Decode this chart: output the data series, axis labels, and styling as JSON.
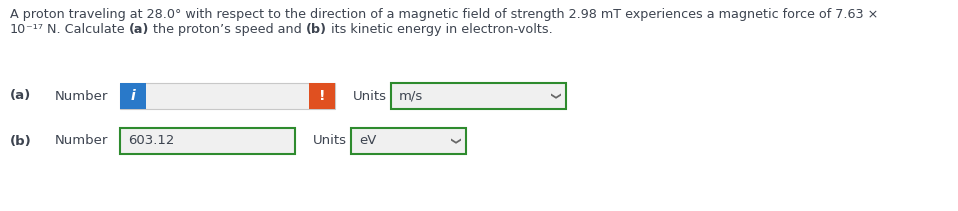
{
  "line1": "A proton traveling at 28.0° with respect to the direction of a magnetic field of strength 2.98 mT experiences a magnetic force of 7.63 ×",
  "line2_segments": [
    [
      "10",
      false
    ],
    [
      "⁻¹⁷ N. Calculate ",
      false
    ],
    [
      "(a)",
      true
    ],
    [
      " the proton’s speed and ",
      false
    ],
    [
      "(b)",
      true
    ],
    [
      " its kinetic energy in electron-volts.",
      false
    ]
  ],
  "row_a_label": "(a)",
  "row_a_number": "Number",
  "row_a_units_label": "Units",
  "row_a_units_value": "m/s",
  "row_b_label": "(b)",
  "row_b_number": "Number",
  "row_b_value": "603.12",
  "row_b_units_label": "Units",
  "row_b_units_value": "eV",
  "bg_color": "#ffffff",
  "text_color": "#3d4450",
  "box_border_color": "#2e8b2e",
  "input_bg": "#f0f0f0",
  "input_border": "#c8c8c8",
  "white": "#ffffff",
  "blue_btn_color": "#2979c9",
  "orange_btn_color": "#e05020",
  "chevron_color": "#666666",
  "font_size_main": 9.2,
  "font_size_ui": 9.5
}
